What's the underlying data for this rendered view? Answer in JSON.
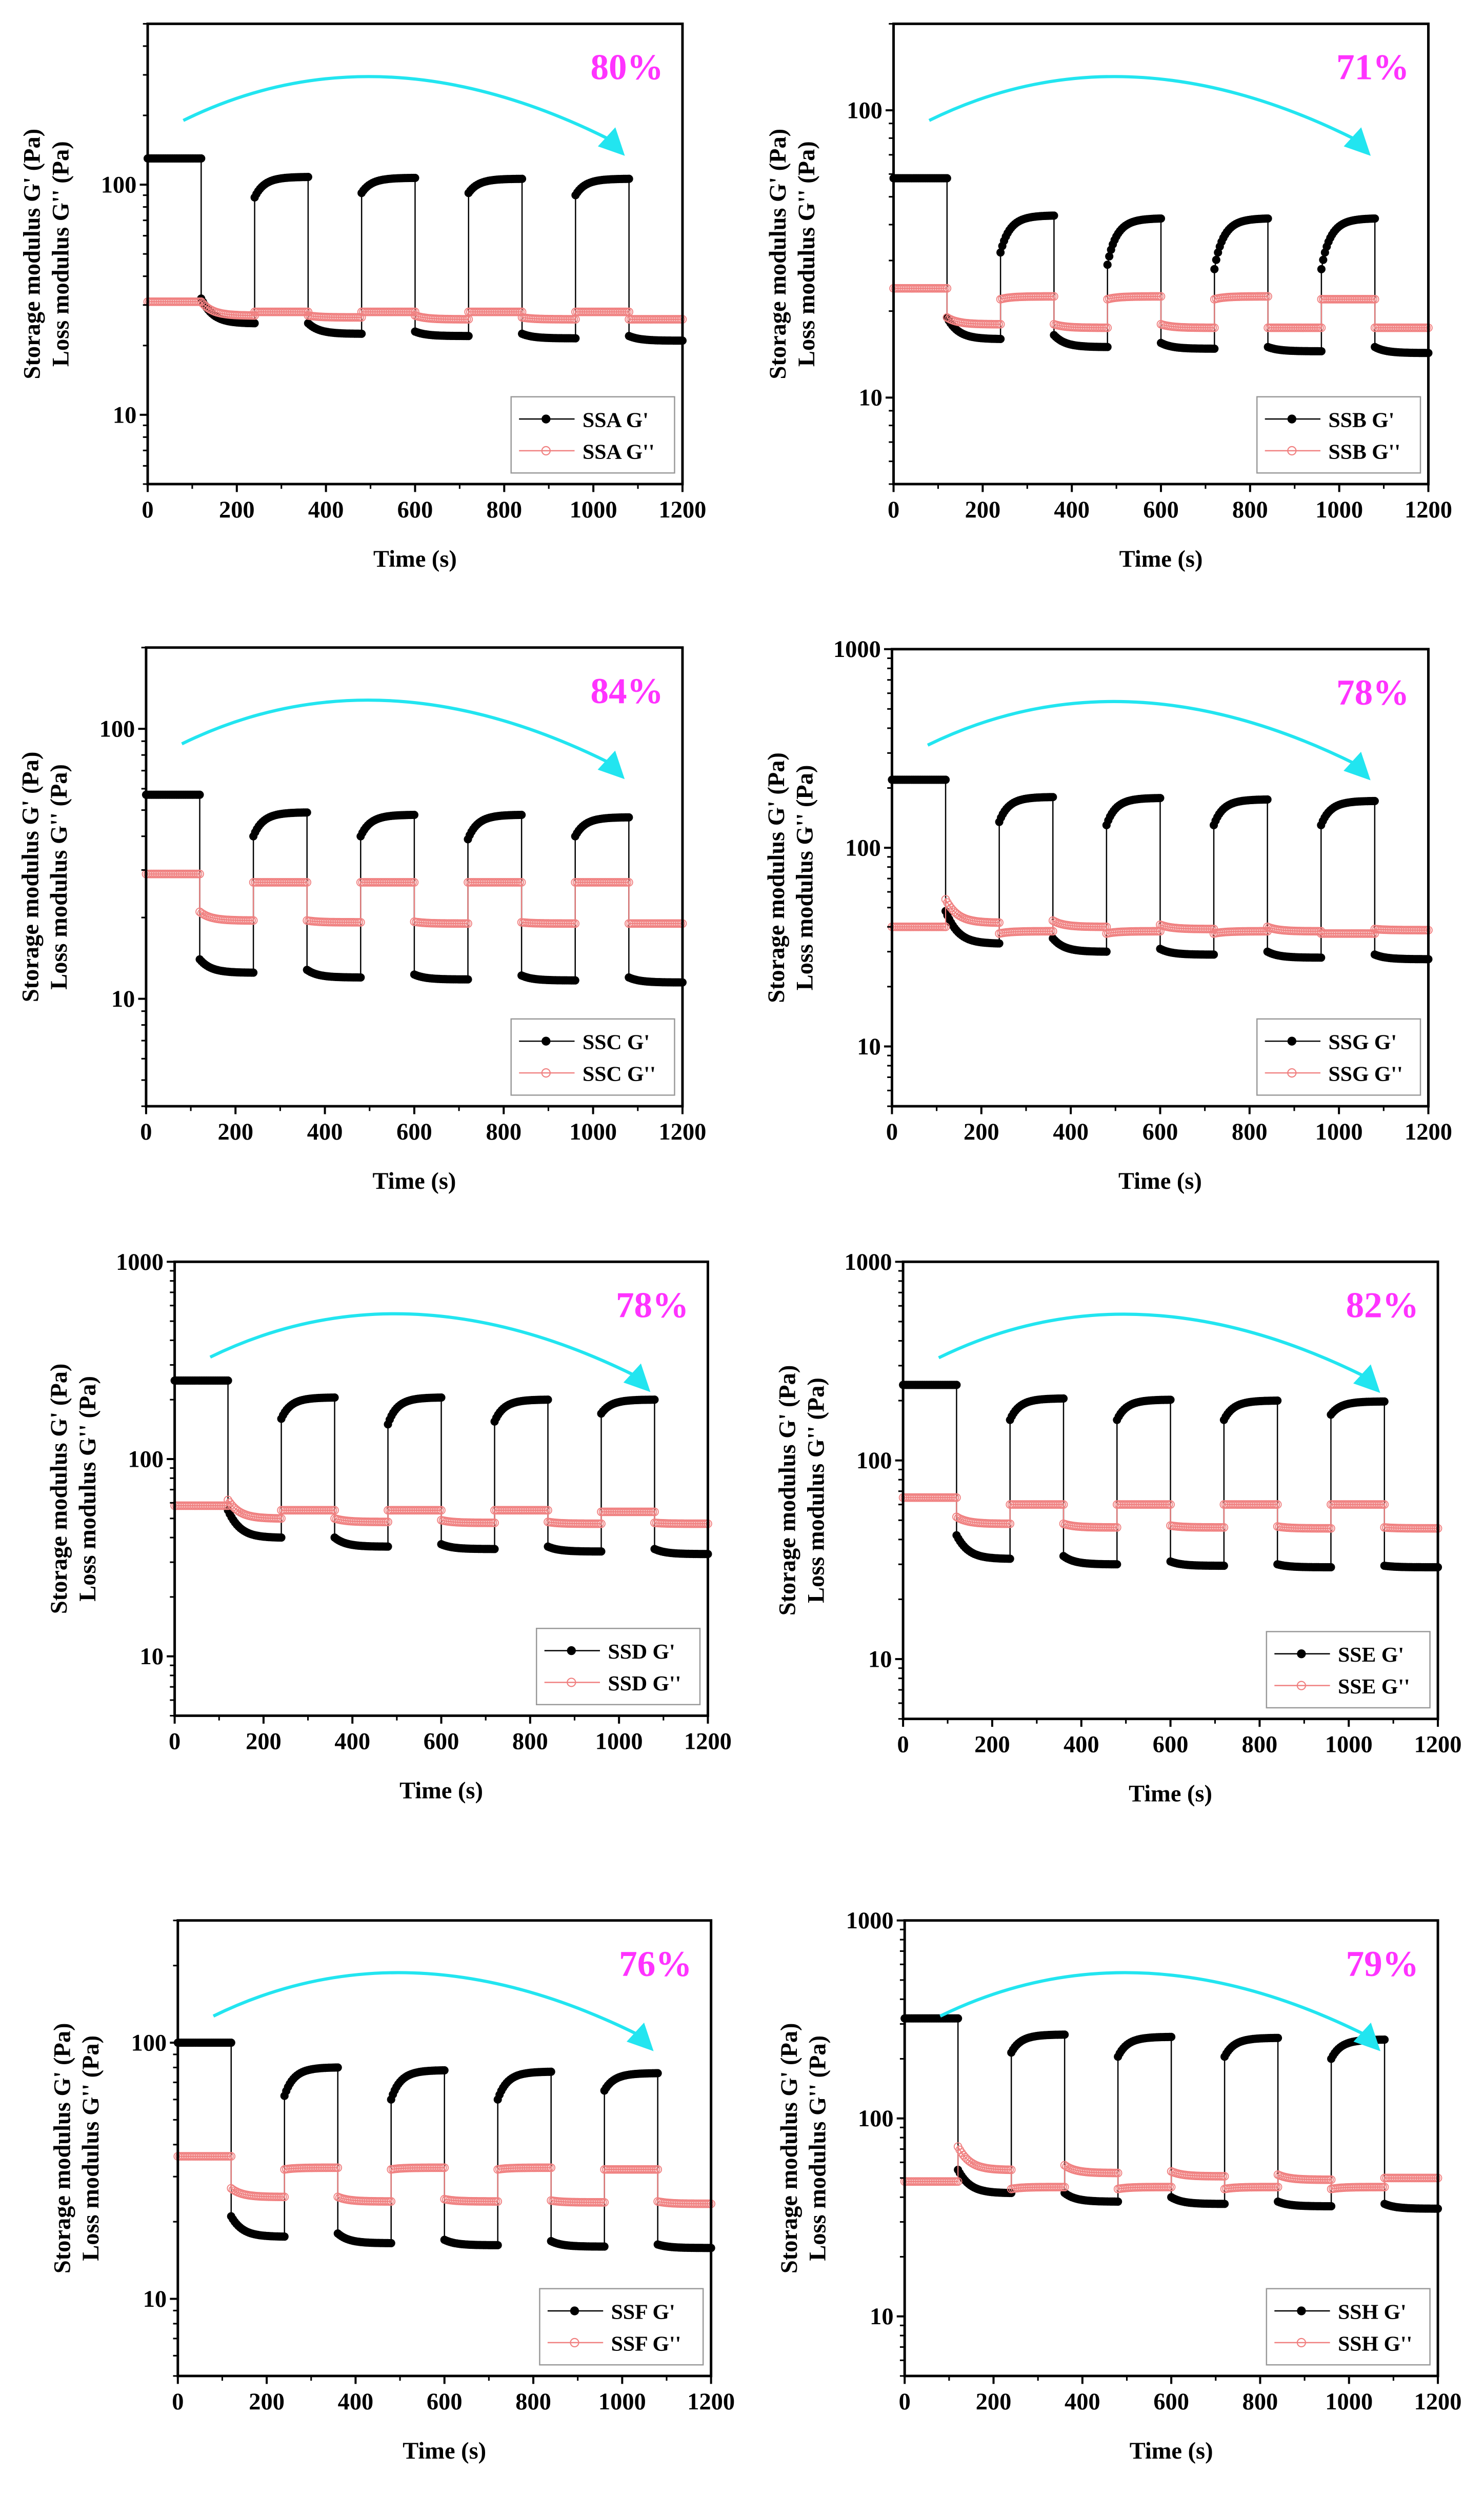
{
  "chart_data": [
    {
      "type": "line",
      "title": "SSA",
      "annotation": "80%",
      "xlabel": "Time (s)",
      "ylabel": [
        "Storage modulus G' (Pa)",
        "Loss modulus G'' (Pa)"
      ],
      "xlim": [
        0,
        1200
      ],
      "ylim": [
        5,
        500
      ],
      "yscale": "log",
      "xticks": [
        0,
        200,
        400,
        600,
        800,
        1000,
        1200
      ],
      "yticks": [
        10,
        100
      ],
      "series": [
        {
          "name": "SSA G'",
          "segments": [
            [
              130,
              130
            ],
            [
              32,
              25
            ],
            [
              88,
              108
            ],
            [
              25,
              22.5
            ],
            [
              92,
              107
            ],
            [
              23,
              22
            ],
            [
              92,
              106
            ],
            [
              22.5,
              21.5
            ],
            [
              90,
              106
            ],
            [
              22,
              21
            ]
          ]
        },
        {
          "name": "SSA G''",
          "segments": [
            [
              31,
              31
            ],
            [
              31,
              27
            ],
            [
              28,
              28
            ],
            [
              27,
              26.5
            ],
            [
              28,
              28
            ],
            [
              27,
              26
            ],
            [
              28,
              28
            ],
            [
              26.5,
              26
            ],
            [
              28,
              28
            ],
            [
              26,
              26
            ]
          ]
        }
      ]
    },
    {
      "type": "line",
      "title": "SSB",
      "annotation": "71%",
      "xlabel": "Time (s)",
      "ylabel": [
        "Storage modulus G' (Pa)",
        "Loss modulus G'' (Pa)"
      ],
      "xlim": [
        0,
        1200
      ],
      "ylim": [
        5,
        200
      ],
      "yscale": "log",
      "xticks": [
        0,
        200,
        400,
        600,
        800,
        1000,
        1200
      ],
      "yticks": [
        10,
        100
      ],
      "series": [
        {
          "name": "SSB G'",
          "segments": [
            [
              58,
              58
            ],
            [
              19,
              16
            ],
            [
              32,
              43
            ],
            [
              16.5,
              15
            ],
            [
              29,
              42
            ],
            [
              15.5,
              14.8
            ],
            [
              28,
              42
            ],
            [
              15,
              14.5
            ],
            [
              28,
              42
            ],
            [
              15,
              14.3
            ]
          ]
        },
        {
          "name": "SSB G''",
          "segments": [
            [
              24,
              24
            ],
            [
              19,
              18
            ],
            [
              22,
              22.5
            ],
            [
              18,
              17.5
            ],
            [
              22,
              22.5
            ],
            [
              18,
              17.5
            ],
            [
              22,
              22.5
            ],
            [
              17.5,
              17.5
            ],
            [
              22,
              22
            ],
            [
              17.5,
              17.5
            ]
          ]
        }
      ]
    },
    {
      "type": "line",
      "title": "SSC",
      "annotation": "84%",
      "xlabel": "Time (s)",
      "ylabel": [
        "Storage modulus G' (Pa)",
        "Loss modulus G'' (Pa)"
      ],
      "xlim": [
        0,
        1200
      ],
      "ylim": [
        4,
        200
      ],
      "yscale": "log",
      "xticks": [
        0,
        200,
        400,
        600,
        800,
        1000,
        1200
      ],
      "yticks": [
        10,
        100
      ],
      "series": [
        {
          "name": "SSC G'",
          "segments": [
            [
              57,
              57
            ],
            [
              14,
              12.5
            ],
            [
              40,
              49
            ],
            [
              12.8,
              12
            ],
            [
              40,
              48
            ],
            [
              12.3,
              11.8
            ],
            [
              39,
              48
            ],
            [
              12.2,
              11.7
            ],
            [
              40,
              47
            ],
            [
              12,
              11.5
            ]
          ]
        },
        {
          "name": "SSC G''",
          "segments": [
            [
              29,
              29
            ],
            [
              21,
              19.5
            ],
            [
              27,
              27
            ],
            [
              19.5,
              19.2
            ],
            [
              27,
              27
            ],
            [
              19.3,
              19
            ],
            [
              27,
              27
            ],
            [
              19.2,
              19
            ],
            [
              27,
              27
            ],
            [
              19,
              19
            ]
          ]
        }
      ]
    },
    {
      "type": "line",
      "title": "SSG",
      "annotation": "78%",
      "xlabel": "Time (s)",
      "ylabel": [
        "Storage modulus G' (Pa)",
        "Loss modulus G'' (Pa)"
      ],
      "xlim": [
        0,
        1200
      ],
      "ylim": [
        5,
        1000
      ],
      "yscale": "log",
      "xticks": [
        0,
        200,
        400,
        600,
        800,
        1000,
        1200
      ],
      "yticks": [
        10,
        100,
        1000
      ],
      "series": [
        {
          "name": "SSG G'",
          "segments": [
            [
              220,
              220
            ],
            [
              48,
              33
            ],
            [
              135,
              180
            ],
            [
              35,
              30
            ],
            [
              130,
              178
            ],
            [
              31,
              29
            ],
            [
              130,
              175
            ],
            [
              30,
              28
            ],
            [
              130,
              172
            ],
            [
              29,
              27.5
            ]
          ]
        },
        {
          "name": "SSG G''",
          "segments": [
            [
              40,
              40
            ],
            [
              55,
              42
            ],
            [
              37,
              38
            ],
            [
              43,
              40
            ],
            [
              37,
              38
            ],
            [
              41,
              39
            ],
            [
              37,
              38
            ],
            [
              40,
              38
            ],
            [
              37,
              37
            ],
            [
              39,
              38.5
            ]
          ]
        }
      ]
    },
    {
      "type": "line",
      "title": "SSD",
      "annotation": "78%",
      "xlabel": "Time (s)",
      "ylabel": [
        "Storage modulus G' (Pa)",
        "Loss modulus G'' (Pa)"
      ],
      "xlim": [
        0,
        1200
      ],
      "ylim": [
        5,
        1000
      ],
      "yscale": "log",
      "xticks": [
        0,
        200,
        400,
        600,
        800,
        1000,
        1200
      ],
      "yticks": [
        10,
        100,
        1000
      ],
      "series": [
        {
          "name": "SSD G'",
          "segments": [
            [
              250,
              250
            ],
            [
              55,
              40
            ],
            [
              160,
              205
            ],
            [
              40,
              36
            ],
            [
              150,
              205
            ],
            [
              37,
              35
            ],
            [
              155,
              200
            ],
            [
              36,
              34
            ],
            [
              170,
              200
            ],
            [
              35,
              33
            ]
          ]
        },
        {
          "name": "SSD G''",
          "segments": [
            [
              58,
              58
            ],
            [
              62,
              50
            ],
            [
              55,
              55
            ],
            [
              50,
              48
            ],
            [
              55,
              55
            ],
            [
              49,
              47.5
            ],
            [
              55,
              55
            ],
            [
              48,
              47
            ],
            [
              54,
              54
            ],
            [
              47.5,
              47
            ]
          ]
        }
      ]
    },
    {
      "type": "line",
      "title": "SSE",
      "annotation": "82%",
      "xlabel": "Time (s)",
      "ylabel": [
        "Storage modulus G' (Pa)",
        "Loss modulus G'' (Pa)"
      ],
      "xlim": [
        0,
        1200
      ],
      "ylim": [
        5,
        1000
      ],
      "yscale": "log",
      "xticks": [
        0,
        200,
        400,
        600,
        800,
        1000,
        1200
      ],
      "yticks": [
        10,
        100,
        1000
      ],
      "series": [
        {
          "name": "SSE G'",
          "segments": [
            [
              240,
              240
            ],
            [
              42,
              32
            ],
            [
              160,
              205
            ],
            [
              33,
              30
            ],
            [
              160,
              202
            ],
            [
              31,
              29.5
            ],
            [
              160,
              200
            ],
            [
              30,
              29
            ],
            [
              170,
              198
            ],
            [
              29.5,
              29
            ]
          ]
        },
        {
          "name": "SSE G''",
          "segments": [
            [
              65,
              65
            ],
            [
              52,
              48
            ],
            [
              60,
              60
            ],
            [
              48,
              46
            ],
            [
              60,
              60
            ],
            [
              47,
              46
            ],
            [
              60,
              60
            ],
            [
              46.5,
              45.5
            ],
            [
              60,
              60
            ],
            [
              46,
              45.5
            ]
          ]
        }
      ]
    },
    {
      "type": "line",
      "title": "SSF",
      "annotation": "76%",
      "xlabel": "Time (s)",
      "ylabel": [
        "Storage modulus G' (Pa)",
        "Loss modulus G'' (Pa)"
      ],
      "xlim": [
        0,
        1200
      ],
      "ylim": [
        5,
        300
      ],
      "yscale": "log",
      "xticks": [
        0,
        200,
        400,
        600,
        800,
        1000,
        1200
      ],
      "yticks": [
        10,
        100
      ],
      "series": [
        {
          "name": "SSF G'",
          "segments": [
            [
              100,
              100
            ],
            [
              21,
              17.5
            ],
            [
              62,
              80
            ],
            [
              18,
              16.5
            ],
            [
              60,
              78
            ],
            [
              17,
              16.2
            ],
            [
              60,
              77
            ],
            [
              16.8,
              16
            ],
            [
              65,
              76
            ],
            [
              16.3,
              15.8
            ]
          ]
        },
        {
          "name": "SSF G''",
          "segments": [
            [
              36,
              36
            ],
            [
              27,
              25
            ],
            [
              32,
              32.5
            ],
            [
              25,
              24
            ],
            [
              32,
              32.5
            ],
            [
              24.5,
              24
            ],
            [
              32,
              32.5
            ],
            [
              24.2,
              23.8
            ],
            [
              32,
              32
            ],
            [
              24,
              23.5
            ]
          ]
        }
      ]
    },
    {
      "type": "line",
      "title": "SSH",
      "annotation": "79%",
      "xlabel": "Time (s)",
      "ylabel": [
        "Storage modulus G' (Pa)",
        "Loss modulus G'' (Pa)"
      ],
      "xlim": [
        0,
        1200
      ],
      "ylim": [
        5,
        1000
      ],
      "yscale": "log",
      "xticks": [
        0,
        200,
        400,
        600,
        800,
        1000,
        1200
      ],
      "yticks": [
        10,
        100,
        1000
      ],
      "series": [
        {
          "name": "SSH G'",
          "segments": [
            [
              320,
              320
            ],
            [
              55,
              42
            ],
            [
              215,
              265
            ],
            [
              42,
              38
            ],
            [
              205,
              258
            ],
            [
              40,
              37
            ],
            [
              205,
              255
            ],
            [
              38,
              36
            ],
            [
              200,
              250
            ],
            [
              37,
              35
            ]
          ]
        },
        {
          "name": "SSH G''",
          "segments": [
            [
              48,
              48
            ],
            [
              72,
              55
            ],
            [
              44,
              45
            ],
            [
              58,
              53
            ],
            [
              44,
              45
            ],
            [
              54,
              51
            ],
            [
              44,
              45
            ],
            [
              52,
              49
            ],
            [
              44,
              45
            ],
            [
              50,
              50
            ]
          ]
        }
      ]
    }
  ],
  "colors": {
    "gprime": "#000000",
    "gdoubleprime": "#f08080",
    "arrow": "#22e5f0",
    "annotation": "#ff33ff"
  }
}
